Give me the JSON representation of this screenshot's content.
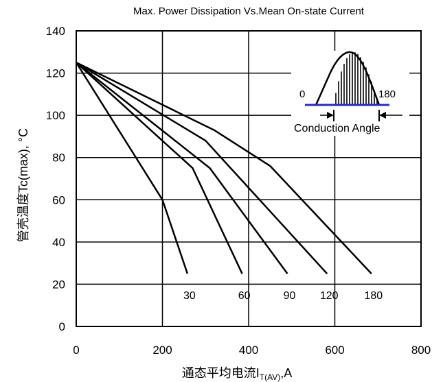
{
  "chart_data": {
    "type": "line",
    "title": "Max. Power Dissipation Vs.Mean On-state Current",
    "xlabel": "通态平均电流I",
    "xlabel_sub": "T(AV)",
    "xlabel_unit": ",A",
    "ylabel": "管壳温度Tc(max), °C",
    "xlim": [
      0,
      800
    ],
    "ylim": [
      0,
      140
    ],
    "x_ticks": [
      "0",
      "200",
      "400",
      "600",
      "800"
    ],
    "y_ticks": [
      "0",
      "20",
      "40",
      "60",
      "80",
      "100",
      "120",
      "140"
    ],
    "grid": true,
    "series": [
      {
        "name": "30",
        "points": [
          [
            0,
            125
          ],
          [
            200,
            60
          ],
          [
            258,
            25
          ]
        ]
      },
      {
        "name": "60",
        "points": [
          [
            0,
            125
          ],
          [
            270,
            75
          ],
          [
            385,
            25
          ]
        ]
      },
      {
        "name": "90",
        "points": [
          [
            0,
            125
          ],
          [
            310,
            75
          ],
          [
            490,
            25
          ]
        ]
      },
      {
        "name": "120",
        "points": [
          [
            0,
            125
          ],
          [
            300,
            88
          ],
          [
            582,
            25
          ]
        ]
      },
      {
        "name": "180",
        "points": [
          [
            0,
            125
          ],
          [
            320,
            93
          ],
          [
            450,
            76
          ],
          [
            685,
            25
          ]
        ]
      }
    ],
    "inset": {
      "left_label": "0",
      "right_label": "180",
      "caption": "Conduction Angle"
    }
  }
}
